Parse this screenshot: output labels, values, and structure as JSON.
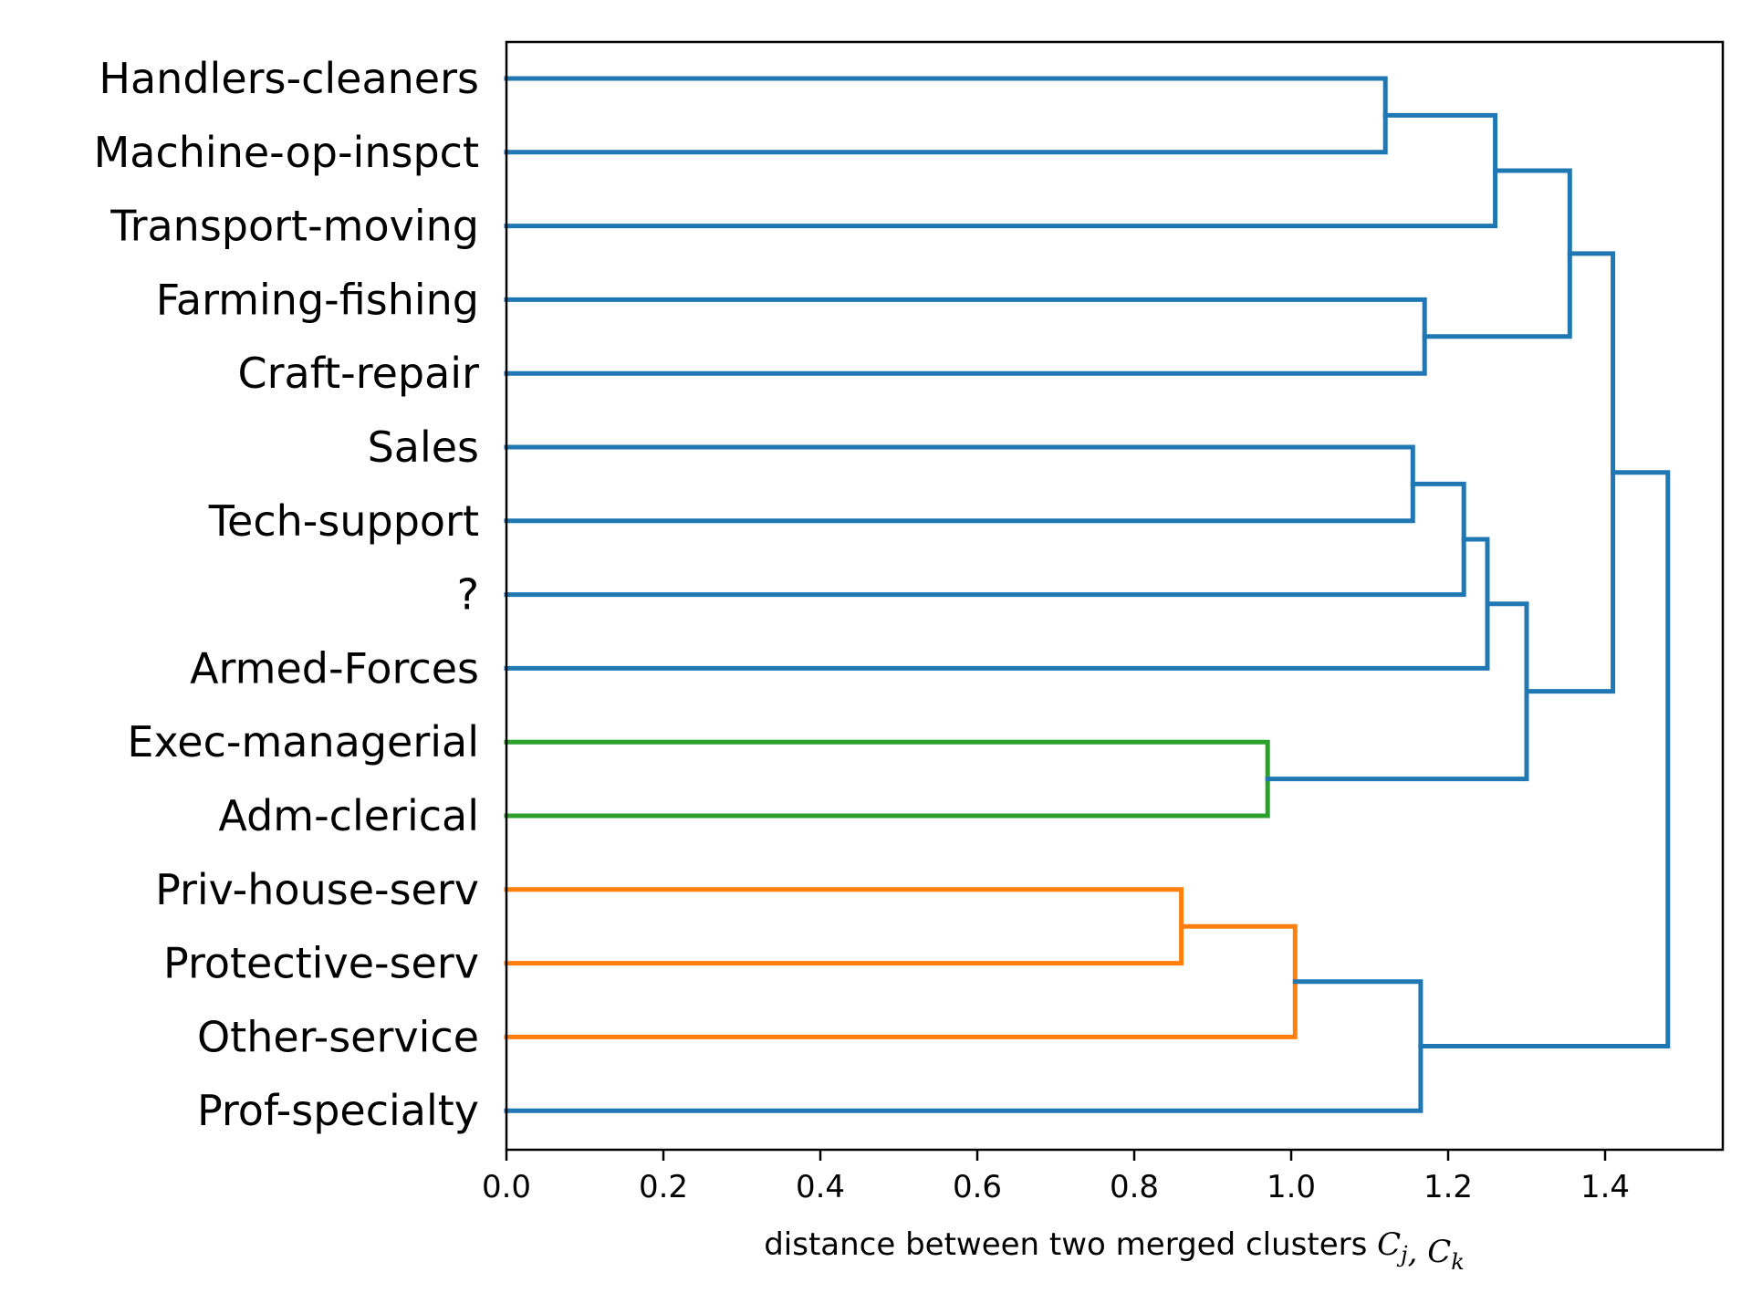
{
  "chart_data": {
    "type": "dendrogram",
    "orientation": "horizontal",
    "xlabel": {
      "text": "distance between two merged clusters ",
      "math": "C_j, C_k",
      "math_parts": [
        {
          "t": "C",
          "sub": "j"
        },
        {
          "t": ", "
        },
        {
          "t": "C",
          "sub": "k"
        }
      ]
    },
    "xlim": [
      0.0,
      1.55
    ],
    "xticks": [
      0.0,
      0.2,
      0.4,
      0.6,
      0.8,
      1.0,
      1.2,
      1.4
    ],
    "xtick_labels": [
      "0.0",
      "0.2",
      "0.4",
      "0.6",
      "0.8",
      "1.0",
      "1.2",
      "1.4"
    ],
    "leaves": [
      "Handlers-cleaners",
      "Machine-op-inspct",
      "Transport-moving",
      "Farming-fishing",
      "Craft-repair",
      "Sales",
      "Tech-support",
      "?",
      "Armed-Forces",
      "Exec-managerial",
      "Adm-clerical",
      "Priv-house-serv",
      "Protective-serv",
      "Other-service",
      "Prof-specialty"
    ],
    "colors": {
      "blue": "#1f77b4",
      "orange": "#ff7f0e",
      "green": "#2ca02c"
    },
    "merges": [
      {
        "id": "m1",
        "left": "Handlers-cleaners",
        "right": "Machine-op-inspct",
        "distance": 1.12,
        "color": "blue"
      },
      {
        "id": "m2",
        "left": "m1",
        "right": "Transport-moving",
        "distance": 1.26,
        "color": "blue"
      },
      {
        "id": "m3",
        "left": "Farming-fishing",
        "right": "Craft-repair",
        "distance": 1.17,
        "color": "blue"
      },
      {
        "id": "m4",
        "left": "m2",
        "right": "m3",
        "distance": 1.355,
        "color": "blue"
      },
      {
        "id": "m5",
        "left": "Sales",
        "right": "Tech-support",
        "distance": 1.155,
        "color": "blue"
      },
      {
        "id": "m6",
        "left": "m5",
        "right": "?",
        "distance": 1.22,
        "color": "blue"
      },
      {
        "id": "m7",
        "left": "m6",
        "right": "Armed-Forces",
        "distance": 1.25,
        "color": "blue"
      },
      {
        "id": "m8",
        "left": "Exec-managerial",
        "right": "Adm-clerical",
        "distance": 0.97,
        "color": "green"
      },
      {
        "id": "m9",
        "left": "m7",
        "right": "m8",
        "distance": 1.3,
        "color": "blue"
      },
      {
        "id": "m10",
        "left": "m4",
        "right": "m9",
        "distance": 1.41,
        "color": "blue"
      },
      {
        "id": "m11",
        "left": "Priv-house-serv",
        "right": "Protective-serv",
        "distance": 0.86,
        "color": "orange"
      },
      {
        "id": "m12",
        "left": "m11",
        "right": "Other-service",
        "distance": 1.005,
        "color": "orange"
      },
      {
        "id": "m13",
        "left": "m12",
        "right": "Prof-specialty",
        "distance": 1.165,
        "color": "blue"
      },
      {
        "id": "m14",
        "left": "m10",
        "right": "m13",
        "distance": 1.48,
        "color": "blue"
      }
    ]
  }
}
